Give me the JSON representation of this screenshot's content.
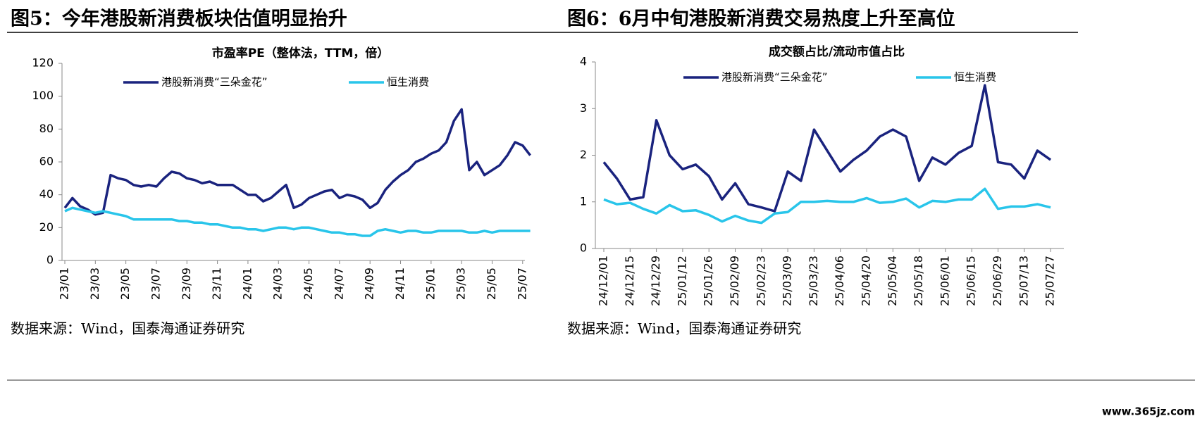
{
  "chart_data": [
    {
      "type": "line",
      "figure_title": "图5：今年港股新消费板块估值明显抬升",
      "title": "市盈率PE（整体法，TTM，倍）",
      "source": "数据来源：Wind，国泰海通证券研究",
      "categories": [
        "23/01",
        null,
        null,
        null,
        "23/03",
        null,
        null,
        null,
        "23/05",
        null,
        null,
        null,
        "23/07",
        null,
        null,
        null,
        "23/09",
        null,
        null,
        null,
        "23/11",
        null,
        null,
        null,
        "24/01",
        null,
        null,
        null,
        "24/03",
        null,
        null,
        null,
        "24/05",
        null,
        null,
        null,
        "24/07",
        null,
        null,
        null,
        "24/09",
        null,
        null,
        null,
        "24/11",
        null,
        null,
        null,
        "25/01",
        null,
        null,
        null,
        "25/03",
        null,
        null,
        null,
        "25/05",
        null,
        null,
        null,
        "25/07",
        null
      ],
      "series": [
        {
          "name": "港股新消费“三朵金花”",
          "color": "#1a237e",
          "values": [
            32,
            38,
            33,
            31,
            28,
            29,
            52,
            50,
            49,
            46,
            45,
            46,
            45,
            50,
            54,
            53,
            50,
            49,
            47,
            48,
            46,
            46,
            46,
            43,
            40,
            40,
            36,
            38,
            42,
            46,
            32,
            34,
            38,
            40,
            42,
            43,
            38,
            40,
            39,
            37,
            32,
            35,
            43,
            48,
            52,
            55,
            60,
            62,
            65,
            67,
            72,
            85,
            92,
            55,
            60,
            52,
            55,
            58,
            64,
            72,
            70,
            64
          ]
        },
        {
          "name": "恒生消费",
          "color": "#29c5ea",
          "values": [
            30,
            32,
            31,
            30,
            29,
            30,
            29,
            28,
            27,
            25,
            25,
            25,
            25,
            25,
            25,
            24,
            24,
            23,
            23,
            22,
            22,
            21,
            20,
            20,
            19,
            19,
            18,
            19,
            20,
            20,
            19,
            20,
            20,
            19,
            18,
            17,
            17,
            16,
            16,
            15,
            15,
            18,
            19,
            18,
            17,
            18,
            18,
            17,
            17,
            18,
            18,
            18,
            18,
            17,
            17,
            18,
            17,
            18,
            18,
            18,
            18,
            18
          ]
        }
      ],
      "ylim": [
        0,
        120
      ],
      "yticks": [
        0,
        20,
        40,
        60,
        80,
        100,
        120
      ],
      "grid": false
    },
    {
      "type": "line",
      "figure_title": "图6：6月中旬港股新消费交易热度上升至高位",
      "title": "成交额占比/流动市值占比",
      "source": "数据来源：Wind，国泰海通证券研究",
      "categories": [
        "24/12/01",
        null,
        "24/12/15",
        null,
        "24/12/29",
        null,
        "25/01/12",
        null,
        "25/01/26",
        null,
        "25/02/09",
        null,
        "25/02/23",
        null,
        "25/03/09",
        null,
        "25/03/23",
        null,
        "25/04/06",
        null,
        "25/04/20",
        null,
        "25/05/04",
        null,
        "25/05/18",
        null,
        "25/06/01",
        null,
        "25/06/15",
        null,
        "25/06/29",
        null,
        "25/07/13",
        null,
        "25/07/27"
      ],
      "series": [
        {
          "name": "港股新消费“三朵金花”",
          "color": "#1a237e",
          "values": [
            1.85,
            1.5,
            1.05,
            1.1,
            2.75,
            2.0,
            1.7,
            1.8,
            1.55,
            1.05,
            1.4,
            0.95,
            0.88,
            0.8,
            1.65,
            1.45,
            2.55,
            2.1,
            1.65,
            1.9,
            2.1,
            2.4,
            2.55,
            2.4,
            1.45,
            1.95,
            1.8,
            2.05,
            2.2,
            3.5,
            1.85,
            1.8,
            1.5,
            2.1,
            1.9
          ]
        },
        {
          "name": "恒生消费",
          "color": "#29c5ea",
          "values": [
            1.05,
            0.95,
            0.98,
            0.85,
            0.75,
            0.93,
            0.8,
            0.82,
            0.72,
            0.58,
            0.7,
            0.6,
            0.55,
            0.75,
            0.78,
            1.0,
            1.0,
            1.02,
            1.0,
            1.0,
            1.08,
            0.98,
            1.0,
            1.07,
            0.88,
            1.02,
            1.0,
            1.05,
            1.05,
            1.28,
            0.85,
            0.9,
            0.9,
            0.95,
            0.88
          ]
        }
      ],
      "ylim": [
        0,
        4
      ],
      "yticks": [
        0,
        1,
        2,
        3,
        4
      ],
      "grid": false
    }
  ],
  "watermark": "www.365jz.com"
}
